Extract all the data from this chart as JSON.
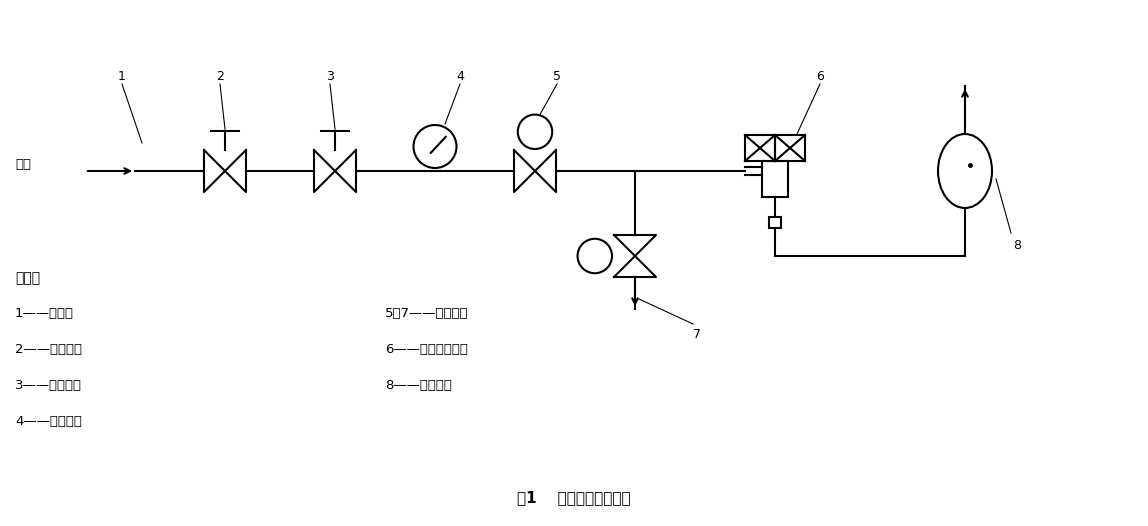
{
  "title": "图1    开阀脉冲试验装置",
  "bg_color": "#ffffff",
  "line_color": "#000000",
  "legend_lines_left": [
    "1——气源；",
    "2——截止阀；",
    "3——减压阀；",
    "4——压力表；"
  ],
  "legend_lines_right": [
    "5、7——电磁阀；",
    "6——被测膨胀阀；",
    "8——流量计。"
  ],
  "label_title": "说明：",
  "gas_source": "气源",
  "num_labels": [
    "1",
    "2",
    "3",
    "4",
    "5",
    "6",
    "7",
    "8"
  ]
}
